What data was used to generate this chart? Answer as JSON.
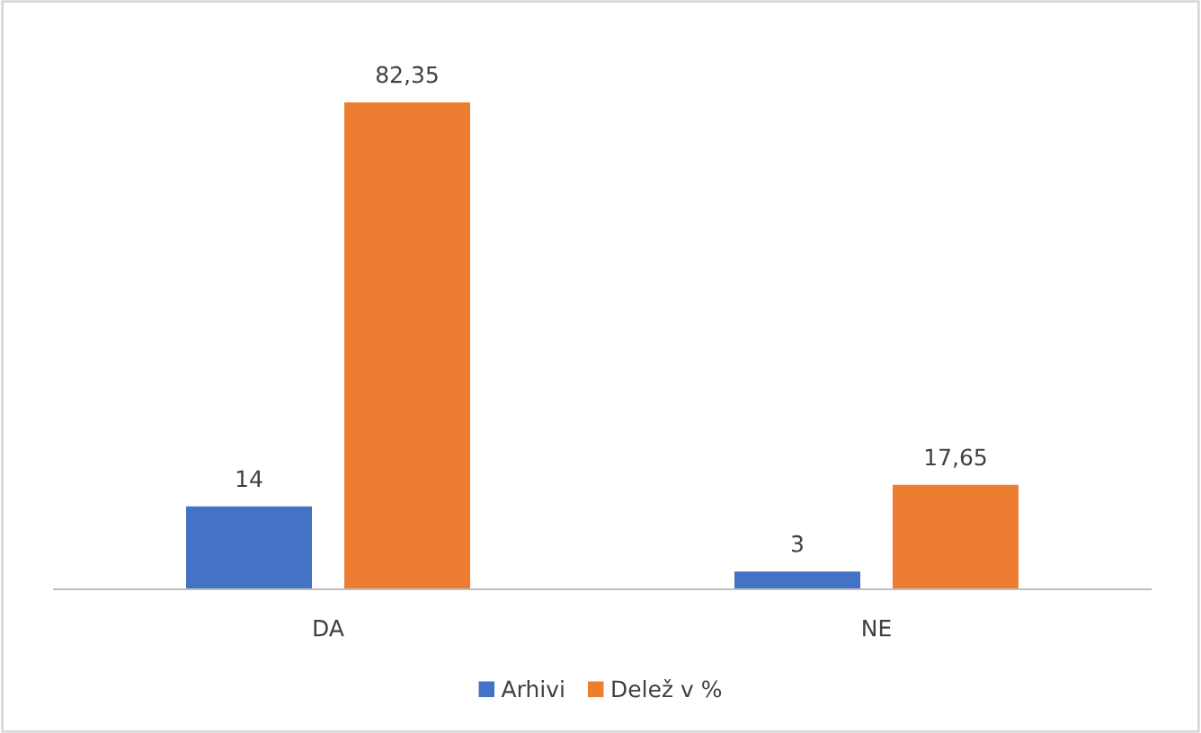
{
  "chart_data": {
    "type": "bar",
    "categories": [
      "DA",
      "NE"
    ],
    "series": [
      {
        "name": "Arhivi",
        "color": "#4472c4",
        "values": [
          14,
          3
        ],
        "value_labels": [
          "14",
          "3"
        ]
      },
      {
        "name": "Delež v %",
        "color": "#ed7d31",
        "values": [
          82.35,
          17.65
        ],
        "value_labels": [
          "82,35",
          "17,65"
        ]
      }
    ],
    "legend": "bottom",
    "grid": false
  }
}
